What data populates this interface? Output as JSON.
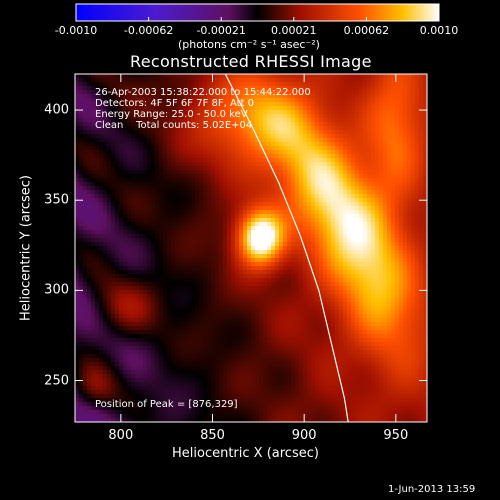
{
  "colorbar": {
    "tick_labels": [
      "-0.0010",
      "-0.00062",
      "-0.00021",
      "0.00021",
      "0.00062",
      "0.0010"
    ],
    "units_label": "(photons cm⁻² s⁻¹ asec⁻²)",
    "range": [
      -0.001,
      0.001
    ]
  },
  "chart_data": {
    "type": "heatmap",
    "title": "Reconstructed RHESSI Image",
    "info_lines": [
      "26-Apr-2003 15:38:22.000 to 15:44:22.000",
      "Detectors: 4F 5F 6F 7F 8F, Att 0",
      "Energy Range: 25.0 - 50.0 keV",
      "Clean    Total counts: 5.02E+04"
    ],
    "peak_label": "Position of Peak = [876,329]",
    "peak": [
      876,
      329
    ],
    "xlabel": "Heliocentric X (arcsec)",
    "ylabel": "Heliocentric Y (arcsec)",
    "xlim": [
      775,
      967
    ],
    "ylim": [
      227,
      420
    ],
    "xticks": [
      800,
      850,
      900,
      950
    ],
    "yticks": [
      250,
      300,
      350,
      400
    ],
    "limb": [
      [
        857,
        420
      ],
      [
        872,
        390
      ],
      [
        886,
        360
      ],
      [
        898,
        330
      ],
      [
        908,
        300
      ],
      [
        915,
        270
      ],
      [
        922,
        240
      ],
      [
        924,
        227
      ]
    ],
    "emission_sources": [
      {
        "x": 876,
        "y": 329,
        "sx": 9,
        "sy": 11,
        "amp": 1.0
      },
      {
        "x": 912,
        "y": 355,
        "sx": 16,
        "sy": 38,
        "rot": -30,
        "amp": 0.65
      },
      {
        "x": 940,
        "y": 300,
        "sx": 16,
        "sy": 34,
        "rot": -20,
        "amp": 0.45
      },
      {
        "x": 870,
        "y": 395,
        "sx": 22,
        "sy": 18,
        "amp": 0.45
      },
      {
        "x": 950,
        "y": 390,
        "sx": 12,
        "sy": 30,
        "amp": 0.4
      },
      {
        "x": 800,
        "y": 290,
        "sx": 14,
        "sy": 12,
        "amp": 0.25
      },
      {
        "x": 785,
        "y": 245,
        "sx": 10,
        "sy": 10,
        "amp": 0.3
      }
    ]
  },
  "timestamp": "1-Jun-2013 13:59"
}
